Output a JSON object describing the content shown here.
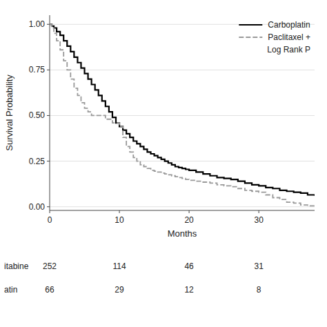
{
  "chart_data": {
    "type": "step",
    "x_label": "Months",
    "y_label": "Survival Probability",
    "xlim": [
      0,
      38
    ],
    "ylim": [
      -0.02,
      1.05
    ],
    "xticks": [
      0,
      10,
      20,
      30
    ],
    "yticks": [
      {
        "value": 0.0,
        "label": "0.00"
      },
      {
        "value": 0.25,
        "label": "0.25"
      },
      {
        "value": 0.5,
        "label": "0.50"
      },
      {
        "value": 0.75,
        "label": "0.75"
      },
      {
        "value": 1.0,
        "label": "1.00"
      }
    ],
    "grid": true,
    "legend": "upper right",
    "annotations": [
      "Log Rank P"
    ],
    "series": [
      {
        "name": "Carboplatin",
        "color": "#000000",
        "line_style": "solid",
        "x": [
          0,
          0.3,
          0.6,
          1.0,
          1.5,
          2.0,
          2.5,
          3.0,
          3.5,
          4.0,
          4.5,
          5.0,
          5.5,
          6.0,
          6.5,
          7.0,
          7.5,
          8.0,
          8.5,
          9.0,
          9.5,
          10.0,
          10.5,
          11.0,
          11.5,
          12.0,
          12.5,
          13.0,
          13.5,
          14.0,
          14.5,
          15.0,
          15.5,
          16.0,
          16.5,
          17.0,
          17.5,
          18.0,
          18.5,
          19.0,
          19.5,
          20.0,
          21.0,
          22.0,
          23.0,
          24.0,
          25.0,
          26.0,
          27.0,
          28.0,
          29.0,
          30.0,
          31.0,
          32.0,
          33.0,
          34.0,
          35.0,
          36.0,
          37.0,
          38.0
        ],
        "values": [
          1.0,
          0.99,
          0.98,
          0.96,
          0.94,
          0.91,
          0.88,
          0.85,
          0.82,
          0.79,
          0.76,
          0.73,
          0.7,
          0.67,
          0.64,
          0.61,
          0.58,
          0.55,
          0.52,
          0.49,
          0.46,
          0.44,
          0.42,
          0.4,
          0.38,
          0.36,
          0.345,
          0.33,
          0.315,
          0.3,
          0.29,
          0.28,
          0.27,
          0.26,
          0.25,
          0.24,
          0.23,
          0.22,
          0.215,
          0.21,
          0.205,
          0.2,
          0.19,
          0.18,
          0.17,
          0.16,
          0.155,
          0.15,
          0.14,
          0.13,
          0.12,
          0.115,
          0.105,
          0.1,
          0.09,
          0.085,
          0.08,
          0.075,
          0.065,
          0.06
        ]
      },
      {
        "name": "Paclitaxel +",
        "color": "#999999",
        "line_style": "dashed",
        "x": [
          0,
          0.3,
          0.6,
          1.0,
          1.5,
          2.0,
          2.5,
          3.0,
          3.5,
          4.0,
          4.5,
          5.0,
          5.5,
          6.0,
          6.5,
          7.0,
          7.5,
          8.0,
          8.5,
          9.0,
          9.5,
          10.0,
          10.2,
          10.5,
          11.0,
          11.5,
          12.0,
          12.5,
          13.0,
          13.5,
          14.0,
          14.5,
          15.0,
          15.5,
          16.0,
          16.5,
          17.0,
          17.5,
          18.0,
          18.5,
          19.0,
          19.5,
          20.0,
          21.0,
          22.0,
          23.0,
          24.0,
          25.0,
          26.0,
          27.0,
          28.0,
          29.0,
          30.0,
          31.0,
          32.0,
          33.0,
          34.0,
          35.0,
          36.0,
          37.0,
          38.0
        ],
        "values": [
          1.0,
          0.98,
          0.95,
          0.91,
          0.86,
          0.8,
          0.75,
          0.7,
          0.65,
          0.61,
          0.57,
          0.54,
          0.52,
          0.5,
          0.5,
          0.5,
          0.5,
          0.48,
          0.48,
          0.46,
          0.46,
          0.45,
          0.44,
          0.38,
          0.33,
          0.3,
          0.27,
          0.25,
          0.23,
          0.22,
          0.21,
          0.2,
          0.195,
          0.19,
          0.185,
          0.18,
          0.175,
          0.17,
          0.165,
          0.16,
          0.155,
          0.15,
          0.145,
          0.14,
          0.135,
          0.13,
          0.12,
          0.115,
          0.11,
          0.1,
          0.09,
          0.085,
          0.08,
          0.065,
          0.05,
          0.04,
          0.025,
          0.02,
          0.01,
          0.005,
          0.005
        ]
      }
    ],
    "at_risk": {
      "labels": [
        "itabine",
        "atin"
      ],
      "x": [
        0,
        10,
        20,
        30
      ],
      "rows": [
        [
          252,
          114,
          46,
          31
        ],
        [
          66,
          29,
          12,
          8
        ]
      ]
    }
  }
}
